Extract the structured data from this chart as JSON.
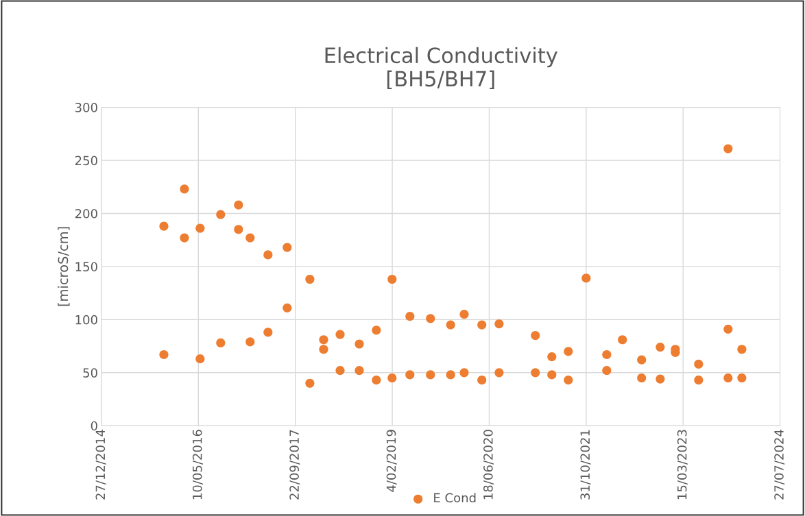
{
  "chart_data": {
    "type": "scatter",
    "title": "Electrical Conductivity\n[BH5/BH7]",
    "ylabel": "[microS/cm]",
    "series": [
      {
        "name": "E Cond",
        "color": "#ed7d31",
        "x": [
          "2015-11-14",
          "2015-11-14",
          "2016-02-28",
          "2016-02-28",
          "2016-05-19",
          "2016-05-19",
          "2016-09-02",
          "2016-09-02",
          "2016-12-03",
          "2016-12-03",
          "2017-02-01",
          "2017-02-01",
          "2017-05-04",
          "2017-05-04",
          "2017-08-11",
          "2017-08-11",
          "2017-12-06",
          "2017-12-06",
          "2018-02-15",
          "2018-02-15",
          "2018-05-11",
          "2018-05-11",
          "2018-08-18",
          "2018-08-18",
          "2018-11-14",
          "2018-11-14",
          "2019-02-03",
          "2019-02-03",
          "2019-05-06",
          "2019-05-06",
          "2019-08-20",
          "2019-08-20",
          "2019-12-02",
          "2019-12-02",
          "2020-02-10",
          "2020-02-10",
          "2020-05-11",
          "2020-05-11",
          "2020-08-08",
          "2020-08-08",
          "2021-02-11",
          "2021-02-11",
          "2021-05-07",
          "2021-05-07",
          "2021-07-31",
          "2021-07-31",
          "2021-10-31",
          "2022-02-14",
          "2022-02-14",
          "2022-05-06",
          "2022-08-13",
          "2022-08-13",
          "2022-11-17",
          "2022-11-17",
          "2023-02-03",
          "2023-02-03",
          "2023-06-03",
          "2023-06-03",
          "2023-11-02",
          "2023-11-02",
          "2023-11-02",
          "2024-01-12",
          "2024-01-12"
        ],
        "values": [
          188,
          67,
          223,
          177,
          186,
          63,
          199,
          78,
          208,
          185,
          177,
          79,
          161,
          88,
          168,
          111,
          138,
          40,
          81,
          72,
          86,
          52,
          77,
          52,
          90,
          43,
          138,
          45,
          103,
          48,
          101,
          48,
          95,
          48,
          105,
          50,
          95,
          43,
          96,
          50,
          85,
          50,
          65,
          48,
          70,
          43,
          139,
          67,
          52,
          81,
          62,
          45,
          74,
          44,
          72,
          69,
          58,
          43,
          261,
          91,
          45,
          72,
          45
        ]
      }
    ],
    "xlim": [
      "2014-12-27",
      "2024-07-27"
    ],
    "xticks": [
      {
        "value": "2014-12-27",
        "label": "27/12/2014"
      },
      {
        "value": "2016-05-10",
        "label": "10/05/2016"
      },
      {
        "value": "2017-09-22",
        "label": "22/09/2017"
      },
      {
        "value": "2019-02-04",
        "label": "4/02/2019"
      },
      {
        "value": "2020-06-18",
        "label": "18/06/2020"
      },
      {
        "value": "2021-10-31",
        "label": "31/10/2021"
      },
      {
        "value": "2023-03-15",
        "label": "15/03/2023"
      },
      {
        "value": "2024-07-27",
        "label": "27/07/2024"
      }
    ],
    "ylim": [
      0,
      300
    ],
    "yticks": [
      0,
      50,
      100,
      150,
      200,
      250,
      300
    ],
    "grid": true,
    "legend": "bottom",
    "marker": "circle"
  }
}
